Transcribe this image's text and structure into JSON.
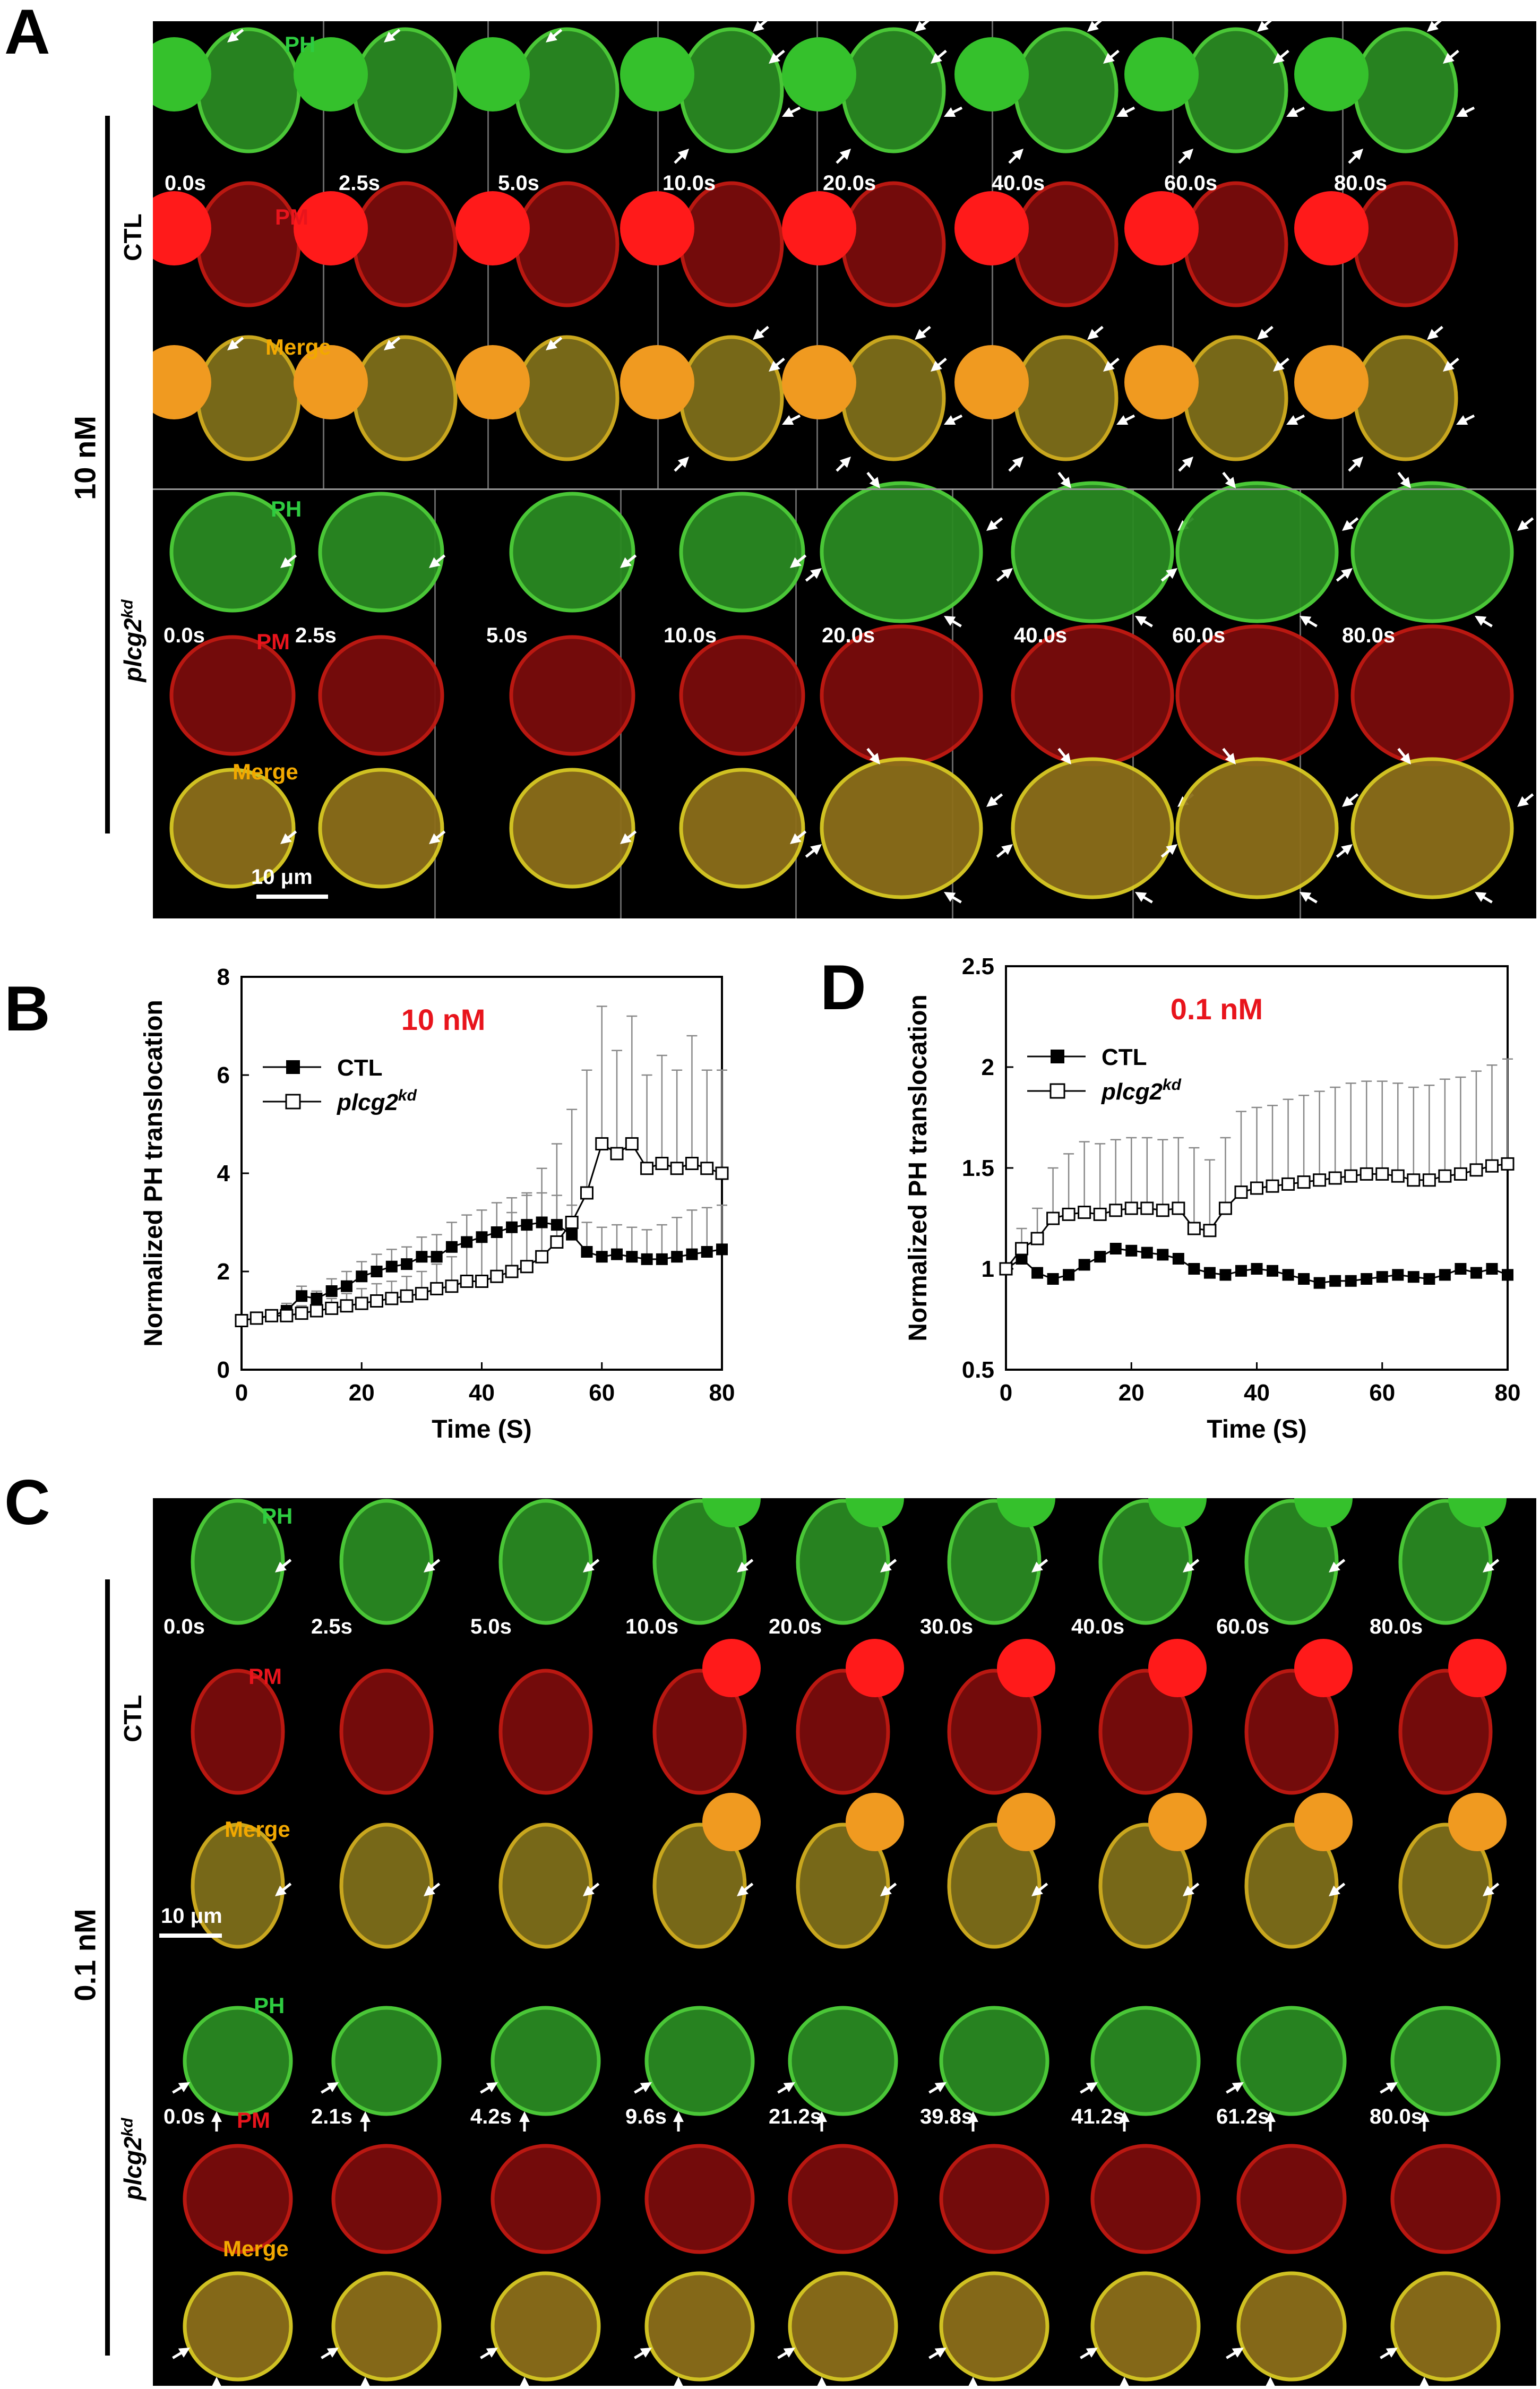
{
  "panels": {
    "A": "A",
    "B": "B",
    "C": "C",
    "D": "D"
  },
  "panel_a": {
    "concentration": "10 nM",
    "groups": [
      {
        "label": "CTL",
        "label_italic": false,
        "times": [
          "0.0s",
          "2.5s",
          "5.0s",
          "10.0s",
          "20.0s",
          "40.0s",
          "60.0s",
          "80.0s"
        ],
        "channels": [
          "PH",
          "PM",
          "Merge"
        ]
      },
      {
        "label": "plcg2",
        "label_sup": "kd",
        "label_italic": true,
        "times": [
          "0.0s",
          "2.5s",
          "5.0s",
          "10.0s",
          "20.0s",
          "40.0s",
          "60.0s",
          "80.0s"
        ],
        "channels": [
          "PH",
          "PM",
          "Merge"
        ]
      }
    ],
    "scale_bar": "10 μm"
  },
  "panel_c": {
    "concentration": "0.1 nM",
    "groups": [
      {
        "label": "CTL",
        "label_italic": false,
        "times": [
          "0.0s",
          "2.5s",
          "5.0s",
          "10.0s",
          "20.0s",
          "30.0s",
          "40.0s",
          "60.0s",
          "80.0s"
        ],
        "channels": [
          "PH",
          "PM",
          "Merge"
        ]
      },
      {
        "label": "plcg2",
        "label_sup": "kd",
        "label_italic": true,
        "times": [
          "0.0s",
          "2.1s",
          "4.2s",
          "9.6s",
          "21.2s",
          "39.8s",
          "41.2s",
          "61.2s",
          "80.0s"
        ],
        "channels": [
          "PH",
          "PM",
          "Merge"
        ]
      }
    ],
    "scale_bar": "10 μm"
  },
  "colors": {
    "ph": "#2ecc40",
    "pm": "#e81010",
    "merge": "#f2a800",
    "annot_red": "#e8141c"
  },
  "chart_data": [
    {
      "id": "B",
      "type": "line",
      "title": "10 nM",
      "xlabel": "Time (S)",
      "ylabel": "Normalized PH translocation",
      "xlim": [
        0,
        80
      ],
      "ylim": [
        0,
        8
      ],
      "xticks": [
        0,
        20,
        40,
        60,
        80
      ],
      "yticks": [
        0,
        2,
        4,
        6,
        8
      ],
      "legend": [
        {
          "name": "CTL",
          "marker": "filled-square"
        },
        {
          "name": "plcg2",
          "sup": "kd",
          "marker": "open-square"
        }
      ],
      "series": [
        {
          "name": "CTL",
          "marker": "filled-square",
          "x": [
            0,
            2.5,
            5,
            7.5,
            10,
            12.5,
            15,
            17.5,
            20,
            22.5,
            25,
            27.5,
            30,
            32.5,
            35,
            37.5,
            40,
            42.5,
            45,
            47.5,
            50,
            52.5,
            55,
            57.5,
            60,
            62.5,
            65,
            67.5,
            70,
            72.5,
            75,
            77.5,
            80
          ],
          "y": [
            1,
            1.05,
            1.1,
            1.2,
            1.5,
            1.45,
            1.6,
            1.7,
            1.9,
            2,
            2.1,
            2.15,
            2.3,
            2.3,
            2.5,
            2.6,
            2.7,
            2.8,
            2.9,
            2.95,
            3,
            2.95,
            2.75,
            2.4,
            2.3,
            2.35,
            2.3,
            2.25,
            2.25,
            2.3,
            2.35,
            2.4,
            2.45
          ],
          "err": [
            0,
            0.05,
            0.08,
            0.15,
            0.2,
            0.15,
            0.25,
            0.3,
            0.3,
            0.35,
            0.35,
            0.35,
            0.4,
            0.45,
            0.5,
            0.55,
            0.55,
            0.6,
            0.6,
            0.6,
            0.6,
            0.6,
            0.6,
            0.6,
            0.6,
            0.6,
            0.6,
            0.6,
            0.7,
            0.8,
            0.9,
            0.9,
            0.9
          ]
        },
        {
          "name": "plcg2kd",
          "marker": "open-square",
          "x": [
            0,
            2.5,
            5,
            7.5,
            10,
            12.5,
            15,
            17.5,
            20,
            22.5,
            25,
            27.5,
            30,
            32.5,
            35,
            37.5,
            40,
            42.5,
            45,
            47.5,
            50,
            52.5,
            55,
            57.5,
            60,
            62.5,
            65,
            67.5,
            70,
            72.5,
            75,
            77.5,
            80
          ],
          "y": [
            1,
            1.05,
            1.1,
            1.1,
            1.15,
            1.2,
            1.25,
            1.3,
            1.35,
            1.4,
            1.45,
            1.5,
            1.55,
            1.65,
            1.7,
            1.8,
            1.8,
            1.9,
            2,
            2.1,
            2.3,
            2.6,
            3,
            3.6,
            4.6,
            4.4,
            4.6,
            4.1,
            4.2,
            4.1,
            4.2,
            4.1,
            4
          ]
        },
        {
          "name": "plcg2kd-err",
          "marker": "none",
          "x": [
            0,
            2.5,
            5,
            7.5,
            10,
            12.5,
            15,
            17.5,
            20,
            22.5,
            25,
            27.5,
            30,
            32.5,
            35,
            37.5,
            40,
            42.5,
            45,
            47.5,
            50,
            52.5,
            55,
            57.5,
            60,
            62.5,
            65,
            67.5,
            70,
            72.5,
            75,
            77.5,
            80
          ],
          "y": [
            0,
            0.05,
            0.1,
            0.1,
            0.15,
            0.2,
            0.2,
            0.25,
            0.3,
            0.35,
            0.35,
            0.4,
            0.45,
            0.5,
            0.6,
            0.7,
            0.8,
            0.95,
            1.2,
            1.5,
            1.8,
            2,
            2.3,
            2.5,
            2.8,
            2.1,
            2.6,
            1.9,
            2.2,
            2,
            2.6,
            2,
            2.1
          ]
        }
      ]
    },
    {
      "id": "D",
      "type": "line",
      "title": "0.1 nM",
      "xlabel": "Time (S)",
      "ylabel": "Normalized PH translocation",
      "xlim": [
        0,
        80
      ],
      "ylim": [
        0.5,
        2.5
      ],
      "xticks": [
        0,
        20,
        40,
        60,
        80
      ],
      "yticks": [
        0.5,
        1,
        1.5,
        2,
        2.5
      ],
      "legend": [
        {
          "name": "CTL",
          "marker": "filled-square"
        },
        {
          "name": "plcg2",
          "sup": "kd",
          "marker": "open-square"
        }
      ],
      "series": [
        {
          "name": "CTL",
          "marker": "filled-square",
          "x": [
            0,
            2.5,
            5,
            7.5,
            10,
            12.5,
            15,
            17.5,
            20,
            22.5,
            25,
            27.5,
            30,
            32.5,
            35,
            37.5,
            40,
            42.5,
            45,
            47.5,
            50,
            52.5,
            55,
            57.5,
            60,
            62.5,
            65,
            67.5,
            70,
            72.5,
            75,
            77.5,
            80
          ],
          "y": [
            1,
            1.05,
            0.98,
            0.95,
            0.97,
            1.02,
            1.06,
            1.1,
            1.09,
            1.08,
            1.07,
            1.05,
            1,
            0.98,
            0.97,
            0.99,
            1,
            0.99,
            0.97,
            0.95,
            0.93,
            0.94,
            0.94,
            0.95,
            0.96,
            0.97,
            0.96,
            0.95,
            0.97,
            1,
            0.98,
            1,
            0.97
          ],
          "err": [
            0,
            0,
            0,
            0,
            0,
            0,
            0,
            0,
            0,
            0,
            0,
            0,
            0,
            0,
            0,
            0,
            0,
            0,
            0,
            0,
            0,
            0,
            0,
            0,
            0,
            0,
            0,
            0,
            0,
            0,
            0,
            0,
            0
          ]
        },
        {
          "name": "plcg2kd",
          "marker": "open-square",
          "x": [
            0,
            2.5,
            5,
            7.5,
            10,
            12.5,
            15,
            17.5,
            20,
            22.5,
            25,
            27.5,
            30,
            32.5,
            35,
            37.5,
            40,
            42.5,
            45,
            47.5,
            50,
            52.5,
            55,
            57.5,
            60,
            62.5,
            65,
            67.5,
            70,
            72.5,
            75,
            77.5,
            80
          ],
          "y": [
            1,
            1.1,
            1.15,
            1.25,
            1.27,
            1.28,
            1.27,
            1.29,
            1.3,
            1.3,
            1.29,
            1.3,
            1.2,
            1.19,
            1.3,
            1.38,
            1.4,
            1.41,
            1.42,
            1.43,
            1.44,
            1.45,
            1.46,
            1.47,
            1.47,
            1.46,
            1.44,
            1.44,
            1.46,
            1.47,
            1.49,
            1.51,
            1.52
          ],
          "err": [
            0,
            0.1,
            0.15,
            0.25,
            0.3,
            0.35,
            0.35,
            0.35,
            0.35,
            0.35,
            0.35,
            0.35,
            0.4,
            0.35,
            0.35,
            0.4,
            0.4,
            0.4,
            0.42,
            0.43,
            0.44,
            0.45,
            0.46,
            0.46,
            0.46,
            0.46,
            0.46,
            0.47,
            0.48,
            0.48,
            0.49,
            0.5,
            0.52
          ]
        }
      ]
    }
  ]
}
